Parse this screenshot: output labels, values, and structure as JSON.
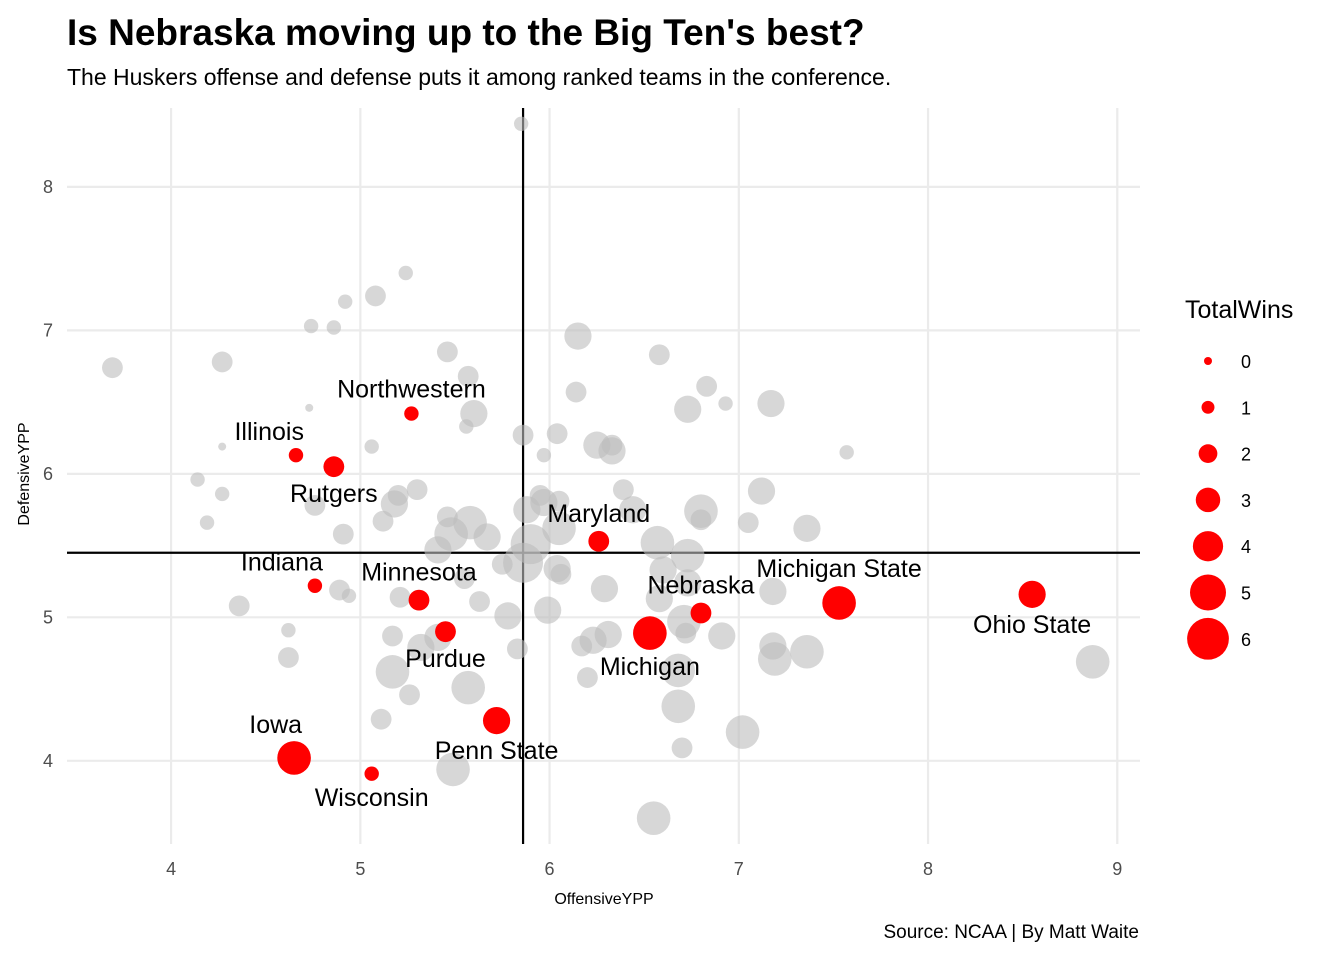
{
  "title": "Is Nebraska moving up to the Big Ten's best?",
  "subtitle": "The Huskers offense and defense puts it among ranked teams in the conference.",
  "caption": "Source: NCAA | By Matt Waite",
  "colors": {
    "highlight": "#ff0000",
    "background_points": "#bdbdbd",
    "grid": "#ebebeb",
    "reference_lines": "#000000"
  },
  "chart_data": {
    "type": "scatter",
    "xlabel": "OffensiveYPP",
    "ylabel": "DefensiveYPP",
    "xlim": [
      3.45,
      9.12
    ],
    "ylim": [
      3.42,
      8.55
    ],
    "xticks": [
      4,
      5,
      6,
      7,
      8,
      9
    ],
    "yticks": [
      4,
      5,
      6,
      7,
      8
    ],
    "grid": true,
    "reference_lines": {
      "x": 5.86,
      "y": 5.45
    },
    "size_variable": "TotalWins",
    "legend": {
      "title": "TotalWins",
      "position": "right",
      "values": [
        0,
        1,
        2,
        3,
        4,
        5,
        6
      ]
    },
    "highlighted": [
      {
        "team": "Northwestern",
        "x": 5.27,
        "y": 6.42,
        "wins": 1,
        "label_pos": "above"
      },
      {
        "team": "Illinois",
        "x": 4.66,
        "y": 6.13,
        "wins": 1,
        "label_pos": "above-left"
      },
      {
        "team": "Rutgers",
        "x": 4.86,
        "y": 6.05,
        "wins": 2,
        "label_pos": "below"
      },
      {
        "team": "Maryland",
        "x": 6.26,
        "y": 5.53,
        "wins": 2,
        "label_pos": "above"
      },
      {
        "team": "Indiana",
        "x": 4.76,
        "y": 5.22,
        "wins": 1,
        "label_pos": "above-left"
      },
      {
        "team": "Minnesota",
        "x": 5.31,
        "y": 5.12,
        "wins": 2,
        "label_pos": "above"
      },
      {
        "team": "Purdue",
        "x": 5.45,
        "y": 4.9,
        "wins": 2,
        "label_pos": "below"
      },
      {
        "team": "Michigan",
        "x": 6.53,
        "y": 4.89,
        "wins": 4,
        "label_pos": "below"
      },
      {
        "team": "Nebraska",
        "x": 6.8,
        "y": 5.03,
        "wins": 2,
        "label_pos": "above"
      },
      {
        "team": "Michigan State",
        "x": 7.53,
        "y": 5.1,
        "wins": 4,
        "label_pos": "above"
      },
      {
        "team": "Ohio State",
        "x": 8.55,
        "y": 5.16,
        "wins": 3,
        "label_pos": "below"
      },
      {
        "team": "Iowa",
        "x": 4.65,
        "y": 4.02,
        "wins": 4,
        "label_pos": "above-left"
      },
      {
        "team": "Penn State",
        "x": 5.72,
        "y": 4.28,
        "wins": 3,
        "label_pos": "below"
      },
      {
        "team": "Wisconsin",
        "x": 5.06,
        "y": 3.91,
        "wins": 1,
        "label_pos": "below"
      }
    ],
    "others": [
      [
        5.85,
        8.44,
        1
      ],
      [
        5.24,
        7.4,
        1
      ],
      [
        5.08,
        7.24,
        2
      ],
      [
        4.92,
        7.2,
        1
      ],
      [
        4.74,
        7.03,
        1
      ],
      [
        4.86,
        7.02,
        1
      ],
      [
        3.69,
        6.74,
        2
      ],
      [
        4.27,
        6.78,
        2
      ],
      [
        5.46,
        6.85,
        2
      ],
      [
        6.15,
        6.96,
        3
      ],
      [
        6.58,
        6.83,
        2
      ],
      [
        5.57,
        6.68,
        2
      ],
      [
        6.14,
        6.57,
        2
      ],
      [
        6.83,
        6.61,
        2
      ],
      [
        6.73,
        6.45,
        3
      ],
      [
        6.93,
        6.49,
        1
      ],
      [
        7.17,
        6.49,
        3
      ],
      [
        4.73,
        6.46,
        0
      ],
      [
        5.6,
        6.42,
        3
      ],
      [
        5.56,
        6.33,
        1
      ],
      [
        5.86,
        6.27,
        2
      ],
      [
        6.04,
        6.28,
        2
      ],
      [
        6.25,
        6.2,
        3
      ],
      [
        6.33,
        6.2,
        2
      ],
      [
        6.33,
        6.16,
        3
      ],
      [
        5.97,
        6.13,
        1
      ],
      [
        7.57,
        6.15,
        1
      ],
      [
        4.27,
        6.19,
        0
      ],
      [
        5.06,
        6.19,
        1
      ],
      [
        4.14,
        5.96,
        1
      ],
      [
        4.27,
        5.86,
        1
      ],
      [
        5.3,
        5.89,
        2
      ],
      [
        5.2,
        5.85,
        2
      ],
      [
        6.39,
        5.89,
        2
      ],
      [
        7.12,
        5.88,
        3
      ],
      [
        5.95,
        5.85,
        2
      ],
      [
        5.97,
        5.8,
        3
      ],
      [
        6.05,
        5.81,
        2
      ],
      [
        4.76,
        5.78,
        2
      ],
      [
        5.18,
        5.79,
        3
      ],
      [
        6.44,
        5.75,
        3
      ],
      [
        6.8,
        5.74,
        4
      ],
      [
        5.58,
        5.66,
        4
      ],
      [
        5.46,
        5.7,
        2
      ],
      [
        5.88,
        5.75,
        3
      ],
      [
        6.8,
        5.68,
        2
      ],
      [
        4.19,
        5.66,
        1
      ],
      [
        5.12,
        5.67,
        2
      ],
      [
        6.05,
        5.62,
        4
      ],
      [
        7.05,
        5.66,
        2
      ],
      [
        7.36,
        5.62,
        3
      ],
      [
        4.91,
        5.58,
        2
      ],
      [
        5.48,
        5.58,
        4
      ],
      [
        5.67,
        5.56,
        3
      ],
      [
        5.9,
        5.51,
        5
      ],
      [
        6.57,
        5.52,
        4
      ],
      [
        6.73,
        5.43,
        4
      ],
      [
        5.41,
        5.47,
        3
      ],
      [
        5.86,
        5.38,
        5
      ],
      [
        5.75,
        5.37,
        2
      ],
      [
        6.04,
        5.34,
        3
      ],
      [
        6.06,
        5.3,
        2
      ],
      [
        6.6,
        5.33,
        3
      ],
      [
        5.55,
        5.27,
        2
      ],
      [
        6.29,
        5.2,
        3
      ],
      [
        6.73,
        5.24,
        3
      ],
      [
        7.18,
        5.18,
        3
      ],
      [
        4.89,
        5.19,
        2
      ],
      [
        4.94,
        5.15,
        1
      ],
      [
        5.21,
        5.14,
        2
      ],
      [
        5.63,
        5.11,
        2
      ],
      [
        6.58,
        5.13,
        3
      ],
      [
        4.36,
        5.08,
        2
      ],
      [
        5.78,
        5.01,
        3
      ],
      [
        5.99,
        5.05,
        3
      ],
      [
        6.71,
        4.97,
        4
      ],
      [
        6.91,
        4.87,
        3
      ],
      [
        4.62,
        4.91,
        1
      ],
      [
        5.17,
        4.87,
        2
      ],
      [
        5.41,
        4.86,
        3
      ],
      [
        6.23,
        4.84,
        3
      ],
      [
        6.17,
        4.8,
        2
      ],
      [
        6.31,
        4.88,
        3
      ],
      [
        6.72,
        4.89,
        2
      ],
      [
        7.18,
        4.8,
        3
      ],
      [
        5.32,
        4.79,
        3
      ],
      [
        5.83,
        4.78,
        2
      ],
      [
        7.19,
        4.71,
        4
      ],
      [
        7.36,
        4.76,
        4
      ],
      [
        4.62,
        4.72,
        2
      ],
      [
        5.17,
        4.62,
        4
      ],
      [
        6.68,
        4.63,
        4
      ],
      [
        8.87,
        4.69,
        4
      ],
      [
        5.57,
        4.51,
        4
      ],
      [
        5.26,
        4.46,
        2
      ],
      [
        6.2,
        4.58,
        2
      ],
      [
        6.68,
        4.38,
        4
      ],
      [
        5.11,
        4.29,
        2
      ],
      [
        7.02,
        4.2,
        4
      ],
      [
        6.7,
        4.09,
        2
      ],
      [
        5.49,
        3.94,
        4
      ],
      [
        6.55,
        3.6,
        4
      ]
    ]
  }
}
